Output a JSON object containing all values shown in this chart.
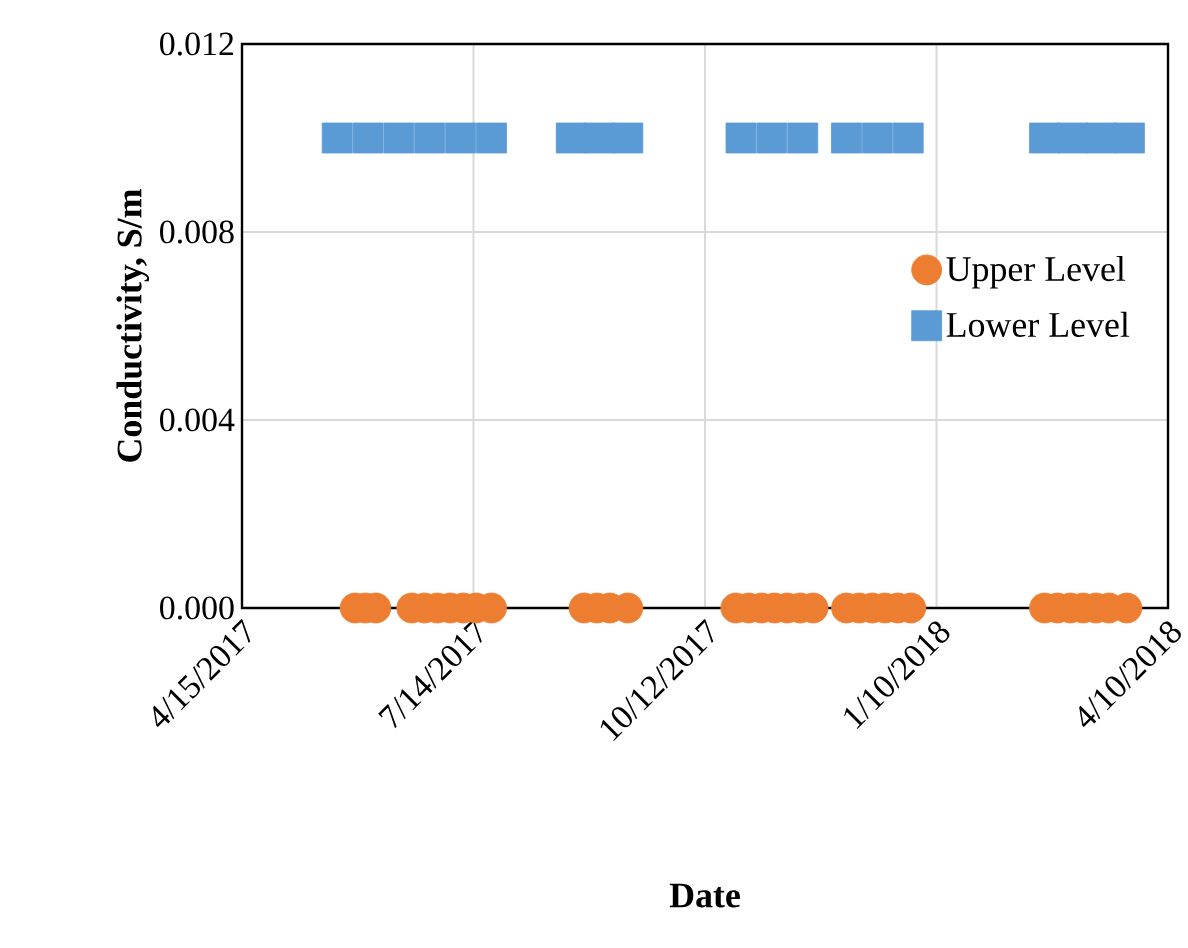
{
  "chart_data": {
    "type": "scatter",
    "xlabel": "Date",
    "ylabel": "Conductivity, S/m",
    "xlim": [
      "2017-04-15",
      "2018-04-10"
    ],
    "xticks": [
      {
        "value": "2017-04-15",
        "label": "4/15/2017"
      },
      {
        "value": "2017-07-14",
        "label": "7/14/2017"
      },
      {
        "value": "2017-10-12",
        "label": "10/12/2017"
      },
      {
        "value": "2018-01-10",
        "label": "1/10/2018"
      },
      {
        "value": "2018-04-10",
        "label": "4/10/2018"
      }
    ],
    "ylim": [
      0,
      0.012
    ],
    "yticks": [
      {
        "value": 0,
        "label": "0.000"
      },
      {
        "value": 0.004,
        "label": "0.004"
      },
      {
        "value": 0.008,
        "label": "0.008"
      },
      {
        "value": 0.012,
        "label": "0.012"
      }
    ],
    "grid": true,
    "legend": "right",
    "series": [
      {
        "name": "Upper Level",
        "color": "#ed7d31",
        "marker": "circle",
        "x": [
          "2017-05-29",
          "2017-06-02",
          "2017-06-06",
          "2017-06-20",
          "2017-06-25",
          "2017-06-30",
          "2017-07-05",
          "2017-07-10",
          "2017-07-15",
          "2017-07-21",
          "2017-08-26",
          "2017-08-31",
          "2017-09-05",
          "2017-09-12",
          "2017-10-24",
          "2017-10-29",
          "2017-11-03",
          "2017-11-08",
          "2017-11-13",
          "2017-11-18",
          "2017-11-23",
          "2017-12-06",
          "2017-12-11",
          "2017-12-16",
          "2017-12-21",
          "2017-12-26",
          "2017-12-31",
          "2018-02-21",
          "2018-02-26",
          "2018-03-03",
          "2018-03-08",
          "2018-03-13",
          "2018-03-18",
          "2018-03-25"
        ],
        "values": [
          0,
          0,
          0,
          0,
          0,
          0,
          0,
          0,
          0,
          0,
          0,
          0,
          0,
          0,
          0,
          0,
          0,
          0,
          0,
          0,
          0,
          0,
          0,
          0,
          0,
          0,
          0,
          0,
          0,
          0,
          0,
          0,
          0,
          0
        ]
      },
      {
        "name": "Lower Level",
        "color": "#5b9bd5",
        "marker": "square",
        "x": [
          "2017-05-22",
          "2017-06-03",
          "2017-06-15",
          "2017-06-27",
          "2017-07-09",
          "2017-07-21",
          "2017-08-21",
          "2017-09-01",
          "2017-09-12",
          "2017-10-26",
          "2017-11-07",
          "2017-11-19",
          "2017-12-06",
          "2017-12-18",
          "2017-12-30",
          "2018-02-21",
          "2018-03-04",
          "2018-03-15",
          "2018-03-26"
        ],
        "values": [
          0.01,
          0.01,
          0.01,
          0.01,
          0.01,
          0.01,
          0.01,
          0.01,
          0.01,
          0.01,
          0.01,
          0.01,
          0.01,
          0.01,
          0.01,
          0.01,
          0.01,
          0.01,
          0.01
        ]
      }
    ]
  }
}
